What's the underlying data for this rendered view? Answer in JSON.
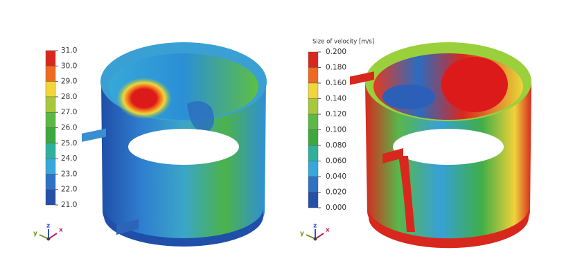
{
  "panels": [
    {
      "legend": {
        "labels": [
          "31.0",
          "30.0",
          "29.0",
          "28.0",
          "27.0",
          "26.0",
          "25.0",
          "24.0",
          "23.0",
          "22.0",
          "21.0"
        ]
      },
      "axes": {
        "x": "x",
        "y": "y",
        "z": "z"
      }
    },
    {
      "legend": {
        "title": "Size of velocity [m/s]",
        "labels": [
          "0.200",
          "0.180",
          "0.160",
          "0.140",
          "0.120",
          "0.100",
          "0.080",
          "0.060",
          "0.040",
          "0.020",
          "0.000"
        ]
      },
      "axes": {
        "x": "x",
        "y": "y",
        "z": "z"
      }
    }
  ]
}
